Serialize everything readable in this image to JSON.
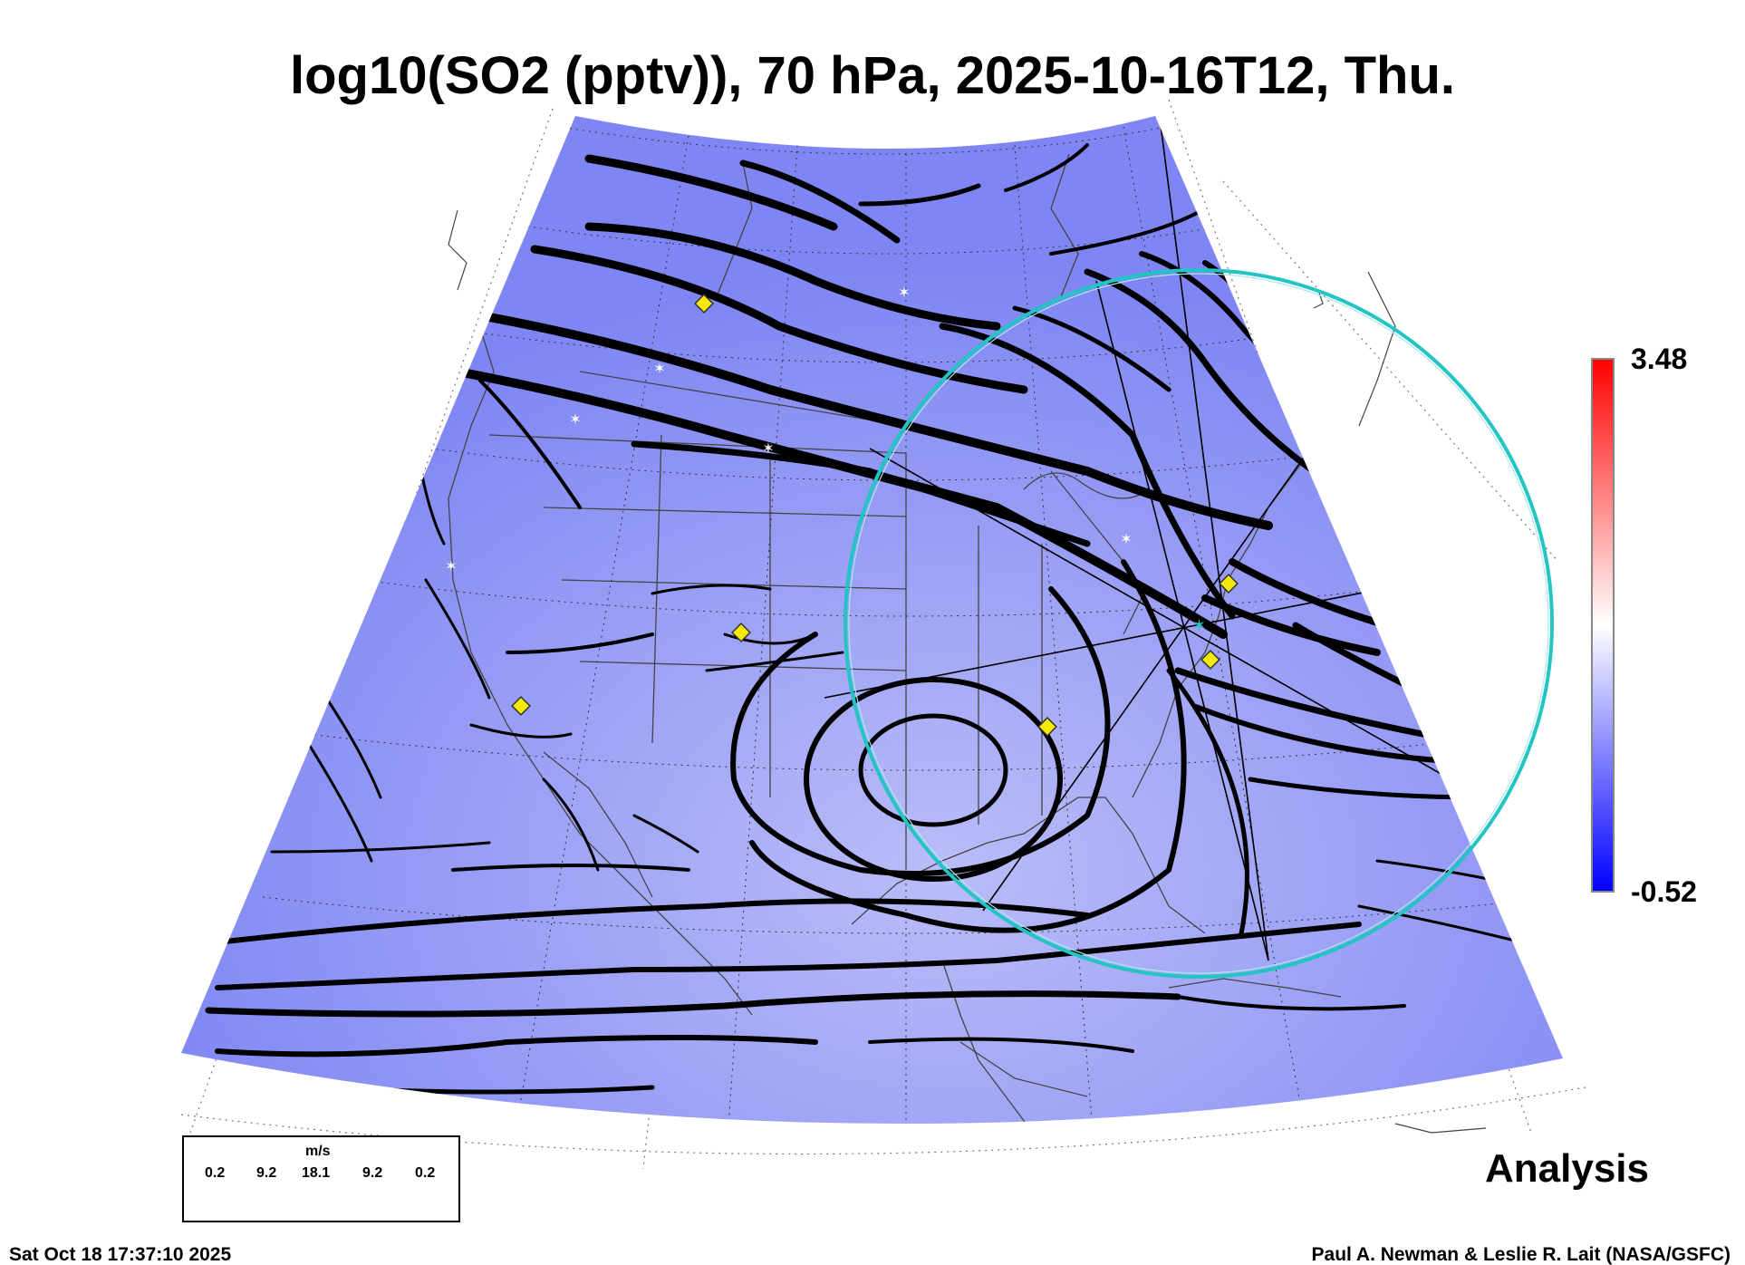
{
  "title": "log10(SO2 (pptv)), 70 hPa, 2025-10-16T12, Thu.",
  "colorbar": {
    "max_label": "3.48",
    "min_label": "-0.52",
    "colors": [
      "#0000ff",
      "#ffffff",
      "#ff0000"
    ]
  },
  "map": {
    "fill_color": "#7f86f3",
    "circle_color": "#22c4c4",
    "marker_color": "#f5e90a",
    "streamline_color": "#000000"
  },
  "wind_legend": {
    "units": "m/s",
    "ticks": [
      "0.2",
      "9.2",
      "18.1",
      "9.2",
      "0.2"
    ]
  },
  "mode_label": "Analysis",
  "footer": {
    "timestamp": "Sat Oct 18 17:37:10 2025",
    "credit": "Paul A. Newman & Leslie R. Lait (NASA/GSFC)"
  }
}
